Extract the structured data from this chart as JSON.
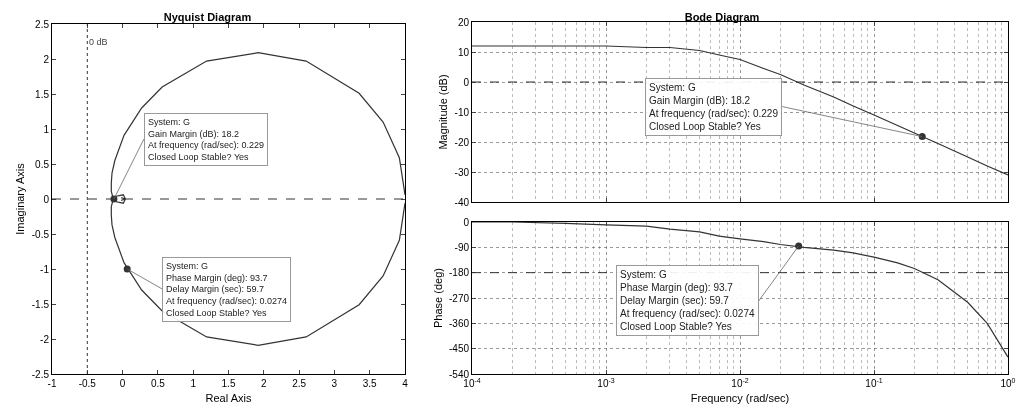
{
  "chart_data": [
    {
      "type": "line",
      "title": "Nyquist Diagram",
      "xlabel": "Real Axis",
      "ylabel": "Imaginary Axis",
      "xlim": [
        -1,
        4
      ],
      "ylim": [
        -2.5,
        2.5
      ],
      "xticks": [
        -1,
        -0.5,
        0,
        0.5,
        1,
        1.5,
        2,
        2.5,
        3,
        3.5,
        4
      ],
      "yticks": [
        -2.5,
        -2,
        -1.5,
        -1,
        -0.5,
        0,
        0.5,
        1,
        1.5,
        2,
        2.5
      ],
      "grid": false,
      "line_style": "solid",
      "series": [
        {
          "color": "#333333",
          "x": [
            4.0,
            3.92,
            3.69,
            3.35,
            2.6,
            1.92,
            1.19,
            0.56,
            0.27,
            0.02,
            -0.11,
            -0.15,
            -0.16,
            -0.16,
            -0.14,
            -0.09,
            0.01,
            0.04,
            -0.02
          ],
          "values": [
            -0.06,
            -0.59,
            -1.1,
            -1.51,
            -1.97,
            -2.09,
            -1.97,
            -1.6,
            -1.3,
            -0.91,
            -0.55,
            -0.37,
            -0.23,
            -0.11,
            -0.03,
            0.04,
            0.06,
            0.0,
            0.02
          ]
        },
        {
          "color": "#333333",
          "x": [
            4.0,
            3.92,
            3.69,
            3.35,
            2.6,
            1.92,
            1.19,
            0.56,
            0.27,
            0.02,
            -0.11,
            -0.15,
            -0.16,
            -0.16,
            -0.14,
            -0.09,
            0.01,
            0.04,
            -0.02
          ],
          "values": [
            0.06,
            0.59,
            1.1,
            1.51,
            1.97,
            2.09,
            1.97,
            1.6,
            1.3,
            0.91,
            0.55,
            0.37,
            0.23,
            0.11,
            0.03,
            -0.04,
            -0.06,
            0.0,
            -0.02
          ]
        },
        {
          "type": "scatter",
          "marker": "circle",
          "color": "#333333",
          "x": [
            -0.123,
            0.065
          ],
          "values": [
            0,
            -1.0
          ]
        }
      ],
      "ref_lines": [
        {
          "axis": "y",
          "value": 0,
          "line_style": "dashed"
        },
        {
          "axis": "x",
          "value": -0.5,
          "label": "0 dB",
          "line_style": "dotted"
        }
      ],
      "annotations": [
        {
          "text": "System: G\nGain Margin (dB): 18.2\nAt frequency (rad/sec): 0.229\nClosed Loop Stable? Yes",
          "x": -0.123,
          "y": 0
        },
        {
          "text": "System: G\nPhase Margin (deg): 93.7\nDelay Margin (sec): 59.7\nAt frequency (rad/sec): 0.0274\nClosed Loop Stable? Yes",
          "x": 0.065,
          "y": -1.0
        }
      ]
    },
    {
      "type": "line",
      "title": "Bode Diagram",
      "ylabel": "Magnitude (dB)",
      "log": "x",
      "tick_labels": "y",
      "xlim": [
        0.0001,
        1
      ],
      "ylim": [
        -40,
        20
      ],
      "xticks": [
        {
          "value": 0.0001,
          "label": null
        },
        {
          "value": 0.001,
          "label": null
        },
        {
          "value": 0.01,
          "label": null
        },
        {
          "value": 0.1,
          "label": null
        },
        {
          "value": 1,
          "label": null
        }
      ],
      "yticks": [
        -40,
        -30,
        -20,
        -10,
        0,
        10,
        20
      ],
      "grid": true,
      "line_style": "solid",
      "series": [
        {
          "color": "#333333",
          "x": [
            0.0001,
            0.0002,
            0.0005,
            0.001,
            0.002,
            0.003,
            0.005,
            0.007,
            0.01,
            0.015,
            0.02,
            0.03,
            0.05,
            0.07,
            0.1,
            0.15,
            0.2,
            0.3,
            0.5,
            0.7,
            1
          ],
          "values": [
            12,
            12,
            12,
            12,
            11.5,
            11.5,
            10.5,
            9,
            7.5,
            4.5,
            2.5,
            -1,
            -5,
            -8,
            -11,
            -14.5,
            -17,
            -20.5,
            -25,
            -28,
            -31
          ]
        },
        {
          "type": "scatter",
          "marker": "circle",
          "color": "#333333",
          "x": [
            0.229
          ],
          "values": [
            -18.2
          ]
        }
      ],
      "ref_lines": [
        {
          "axis": "y",
          "value": 0,
          "line_style": "dashed"
        }
      ],
      "annotations": [
        {
          "text": "System: G\nGain Margin (dB): 18.2\nAt frequency (rad/sec): 0.229\nClosed Loop Stable? Yes",
          "x": 0.229,
          "y": -18.2
        }
      ]
    },
    {
      "type": "line",
      "xlabel": "Frequency (rad/sec)",
      "ylabel": "Phase (deg)",
      "log": "x",
      "xlim": [
        0.0001,
        1
      ],
      "ylim": [
        -540,
        0
      ],
      "xticks": [
        {
          "value": 0.0001,
          "label": "10$^{-4}$"
        },
        {
          "value": 0.001,
          "label": "10$^{-3}$"
        },
        {
          "value": 0.01,
          "label": "10$^{-2}$"
        },
        {
          "value": 0.1,
          "label": "10$^{-1}$"
        },
        {
          "value": 1,
          "label": "10$^{0}$"
        }
      ],
      "yticks": [
        -540,
        -450,
        -360,
        -270,
        -180,
        -90,
        0
      ],
      "grid": true,
      "line_style": "solid",
      "series": [
        {
          "color": "#333333",
          "x": [
            0.0001,
            0.0002,
            0.0005,
            0.001,
            0.002,
            0.003,
            0.005,
            0.007,
            0.01,
            0.015,
            0.02,
            0.03,
            0.05,
            0.07,
            0.1,
            0.15,
            0.2,
            0.3,
            0.5,
            0.7,
            1
          ],
          "values": [
            0,
            0,
            -5,
            -10,
            -15,
            -25,
            -35,
            -50,
            -60,
            -70,
            -80,
            -90,
            -100,
            -110,
            -125,
            -145,
            -165,
            -205,
            -285,
            -360,
            -480
          ]
        },
        {
          "type": "scatter",
          "marker": "circle",
          "color": "#333333",
          "x": [
            0.0274
          ],
          "values": [
            -85
          ]
        }
      ],
      "ref_lines": [
        {
          "axis": "y",
          "value": -180,
          "line_style": "dashed"
        }
      ],
      "annotations": [
        {
          "text": "System: G\nPhase Margin (deg): 93.7\nDelay Margin (sec): 59.7\nAt frequency (rad/sec): 0.0274\nClosed Loop Stable? Yes",
          "x": 0.0274,
          "y": -85
        }
      ]
    }
  ]
}
